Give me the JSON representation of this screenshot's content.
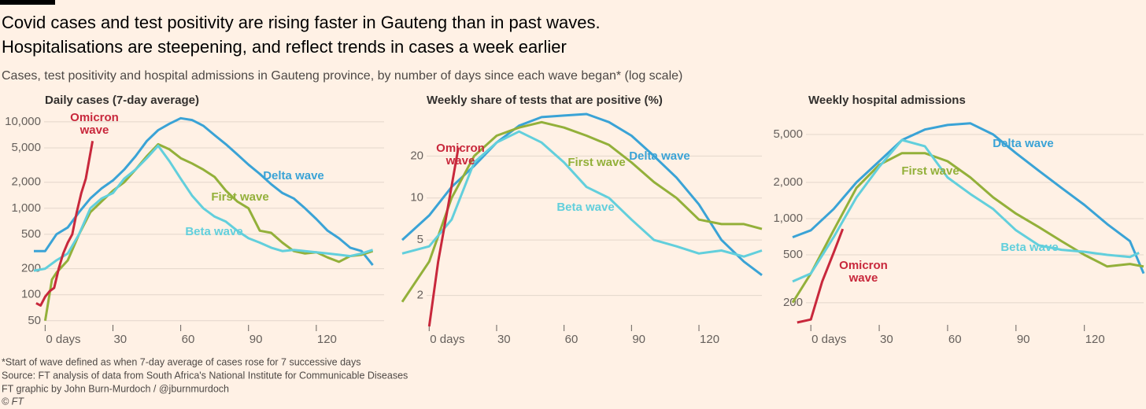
{
  "header": {
    "title": [
      "Covid cases and test positivity are rising faster in Gauteng than in past waves.",
      "Hospitalisations are steepening, and reflect trends in cases a week earlier"
    ],
    "subtitle": "Cases, test positivity and hospital admissions in Gauteng province, by number of days since each wave began* (log scale)"
  },
  "footer": [
    "*Start of wave defined as when 7-day average of cases rose for 7 successive days",
    "Source: FT analysis of data from South Africa's National Institute for Communicable Diseases",
    "FT graphic by John Burn-Murdoch / @jburnmurdoch",
    "© FT"
  ],
  "chart_data": [
    {
      "type": "line",
      "title": "Daily cases (7-day average)",
      "log_scale": true,
      "grid": true,
      "xlim": [
        -5,
        150
      ],
      "xticks": [
        {
          "value": 0,
          "label": "0 days"
        },
        30,
        60,
        90,
        120
      ],
      "ylim": [
        43,
        12300
      ],
      "yticks": [
        50,
        100,
        200,
        500,
        {
          "value": 1000,
          "label": "1,000"
        },
        {
          "value": 2000,
          "label": "2,000"
        },
        {
          "value": 5000,
          "label": "5,000"
        },
        {
          "value": 10000,
          "label": "10,000"
        }
      ],
      "series": [
        {
          "name": "Delta wave",
          "color": "#3aa3d6",
          "x": [
            -5,
            0,
            5,
            10,
            15,
            20,
            25,
            30,
            35,
            40,
            45,
            50,
            55,
            60,
            65,
            70,
            75,
            80,
            85,
            90,
            95,
            100,
            105,
            110,
            115,
            120,
            125,
            130,
            135,
            140,
            145
          ],
          "values": [
            320,
            320,
            500,
            600,
            900,
            1300,
            1700,
            2100,
            2800,
            4000,
            6000,
            8000,
            9500,
            11000,
            10500,
            9000,
            7000,
            5500,
            4200,
            3200,
            2500,
            1900,
            1500,
            1300,
            1000,
            750,
            550,
            450,
            350,
            320,
            220
          ]
        },
        {
          "name": "First wave",
          "color": "#93b03a",
          "x": [
            0,
            3,
            5,
            10,
            15,
            20,
            25,
            30,
            35,
            40,
            45,
            50,
            55,
            60,
            65,
            70,
            75,
            80,
            85,
            90,
            95,
            100,
            105,
            110,
            115,
            120,
            125,
            130,
            135,
            140,
            145
          ],
          "values": [
            50,
            150,
            180,
            250,
            500,
            900,
            1200,
            1600,
            2000,
            2800,
            4000,
            5500,
            4800,
            3800,
            3300,
            2800,
            2300,
            1600,
            1200,
            1000,
            550,
            520,
            400,
            320,
            300,
            310,
            270,
            240,
            280,
            290,
            320
          ]
        },
        {
          "name": "Beta wave",
          "color": "#62cfdc",
          "x": [
            -5,
            0,
            5,
            10,
            15,
            20,
            25,
            30,
            35,
            40,
            45,
            50,
            55,
            60,
            65,
            70,
            75,
            80,
            85,
            90,
            95,
            100,
            105,
            110,
            115,
            120,
            125,
            130,
            135,
            140,
            145
          ],
          "values": [
            190,
            200,
            250,
            300,
            500,
            1000,
            1300,
            1500,
            2200,
            2800,
            3800,
            5300,
            3500,
            2200,
            1400,
            1000,
            800,
            700,
            550,
            450,
            400,
            350,
            320,
            330,
            320,
            310,
            300,
            290,
            280,
            300,
            330
          ]
        },
        {
          "name": "Omicron wave",
          "color": "#c8283c",
          "x": [
            -4,
            -2,
            0,
            2,
            4,
            6,
            8,
            10,
            12,
            14,
            16,
            18,
            21
          ],
          "values": [
            80,
            75,
            95,
            110,
            120,
            200,
            300,
            400,
            500,
            900,
            1500,
            2200,
            6000
          ]
        }
      ]
    },
    {
      "type": "line",
      "title": "Weekly share of tests that are positive (%)",
      "log_scale": true,
      "grid": true,
      "xlim": [
        -12,
        148
      ],
      "xticks": [
        {
          "value": 0,
          "label": "0 days"
        },
        30,
        60,
        90,
        120
      ],
      "ylim": [
        1.2,
        40
      ],
      "yticks": [
        2,
        5,
        10,
        20
      ],
      "series": [
        {
          "name": "Delta wave",
          "color": "#3aa3d6",
          "x": [
            -12,
            0,
            10,
            20,
            30,
            40,
            50,
            60,
            70,
            80,
            90,
            100,
            110,
            120,
            130,
            140,
            148
          ],
          "values": [
            5,
            7.5,
            12,
            17,
            25,
            33,
            38,
            39,
            40,
            35,
            28,
            20,
            14,
            9,
            5,
            3.5,
            2.8
          ]
        },
        {
          "name": "First wave",
          "color": "#93b03a",
          "x": [
            -12,
            0,
            10,
            20,
            30,
            40,
            50,
            60,
            70,
            80,
            90,
            100,
            110,
            120,
            130,
            140,
            148
          ],
          "values": [
            1.8,
            3.5,
            10,
            20,
            28,
            32,
            35,
            32,
            28,
            24,
            18,
            13,
            10,
            7,
            6.5,
            6.5,
            6
          ]
        },
        {
          "name": "Beta wave",
          "color": "#62cfdc",
          "x": [
            -12,
            0,
            10,
            20,
            30,
            40,
            50,
            60,
            70,
            80,
            90,
            100,
            110,
            120,
            130,
            140,
            148
          ],
          "values": [
            4,
            4.5,
            7,
            18,
            25,
            30,
            25,
            18,
            12,
            10,
            7,
            5,
            4.5,
            4,
            4.2,
            3.8,
            4.2
          ]
        },
        {
          "name": "Omicron wave",
          "color": "#c8283c",
          "x": [
            0,
            4,
            8,
            13
          ],
          "values": [
            1.2,
            3.5,
            8,
            23
          ]
        }
      ]
    },
    {
      "type": "line",
      "title": "Weekly hospital admissions",
      "log_scale": true,
      "grid": true,
      "xlim": [
        -8,
        146
      ],
      "xticks": [
        {
          "value": 0,
          "label": "0 days"
        },
        30,
        60,
        90,
        120
      ],
      "ylim": [
        127,
        7400
      ],
      "yticks": [
        200,
        500,
        {
          "value": 1000,
          "label": "1,000"
        },
        {
          "value": 2000,
          "label": "2,000"
        },
        {
          "value": 5000,
          "label": "5,000"
        }
      ],
      "series": [
        {
          "name": "Delta wave",
          "color": "#3aa3d6",
          "x": [
            -8,
            0,
            10,
            20,
            30,
            40,
            50,
            60,
            70,
            80,
            90,
            100,
            110,
            120,
            130,
            140,
            146
          ],
          "values": [
            700,
            800,
            1200,
            2000,
            3000,
            4500,
            5500,
            6000,
            6200,
            5000,
            3500,
            2500,
            1800,
            1300,
            900,
            650,
            350
          ]
        },
        {
          "name": "First wave",
          "color": "#93b03a",
          "x": [
            -8,
            0,
            10,
            20,
            30,
            40,
            50,
            60,
            70,
            80,
            90,
            100,
            110,
            120,
            130,
            140,
            146
          ],
          "values": [
            200,
            350,
            800,
            1800,
            2800,
            3500,
            3500,
            3000,
            2200,
            1500,
            1100,
            850,
            650,
            500,
            400,
            420,
            400
          ]
        },
        {
          "name": "Beta wave",
          "color": "#62cfdc",
          "x": [
            -8,
            0,
            10,
            20,
            30,
            40,
            50,
            60,
            70,
            80,
            90,
            100,
            110,
            120,
            130,
            140,
            144
          ],
          "values": [
            300,
            350,
            700,
            1500,
            2700,
            4500,
            4000,
            2200,
            1600,
            1200,
            800,
            600,
            550,
            530,
            500,
            480,
            520
          ]
        },
        {
          "name": "Omicron wave",
          "color": "#c8283c",
          "x": [
            -6,
            0,
            5,
            10,
            14
          ],
          "values": [
            137,
            145,
            300,
            520,
            820
          ]
        }
      ]
    }
  ]
}
